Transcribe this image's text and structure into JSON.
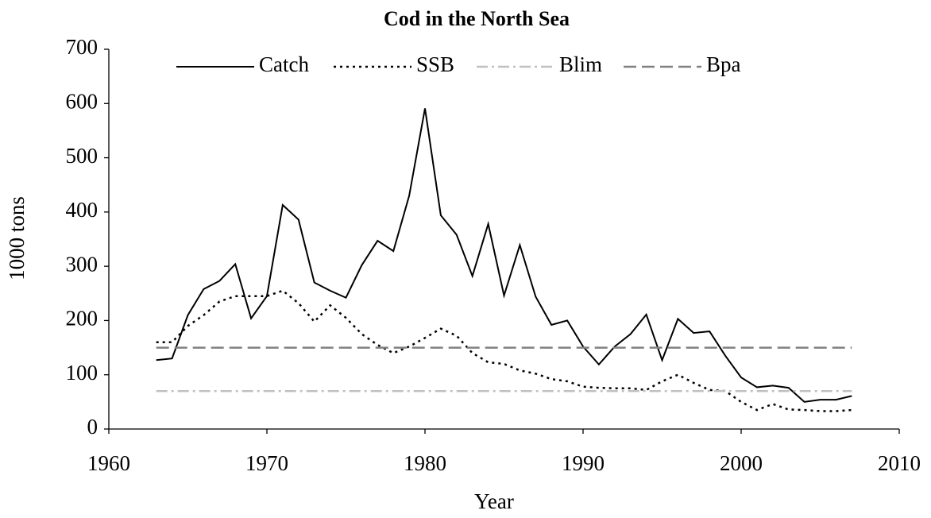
{
  "chart_data": {
    "type": "line",
    "title": "Cod in the North Sea",
    "x_label": "Year",
    "y_label": "1000 tons",
    "x": [
      1963,
      1964,
      1965,
      1966,
      1967,
      1968,
      1969,
      1970,
      1971,
      1972,
      1973,
      1974,
      1975,
      1976,
      1977,
      1978,
      1979,
      1980,
      1981,
      1982,
      1983,
      1984,
      1985,
      1986,
      1987,
      1988,
      1989,
      1990,
      1991,
      1992,
      1993,
      1994,
      1995,
      1996,
      1997,
      1998,
      1999,
      2000,
      2001,
      2002,
      2003,
      2004,
      2005,
      2006,
      2007
    ],
    "series": [
      {
        "name": "Catch",
        "color": "#000000",
        "dash": "solid",
        "values": [
          127,
          130,
          210,
          258,
          273,
          304,
          204,
          245,
          413,
          386,
          270,
          255,
          242,
          302,
          347,
          328,
          430,
          591,
          394,
          358,
          282,
          378,
          246,
          339,
          244,
          192,
          200,
          152,
          119,
          152,
          175,
          211,
          127,
          203,
          177,
          180,
          135,
          95,
          77,
          80,
          76,
          50,
          54,
          54,
          61
        ]
      },
      {
        "name": "SSB",
        "color": "#000000",
        "dash": "dotted",
        "values": [
          160,
          160,
          190,
          210,
          235,
          245,
          245,
          245,
          255,
          232,
          198,
          228,
          205,
          175,
          155,
          140,
          152,
          168,
          185,
          172,
          140,
          123,
          120,
          108,
          102,
          92,
          88,
          78,
          76,
          75,
          75,
          72,
          88,
          100,
          85,
          72,
          70,
          50,
          35,
          46,
          36,
          35,
          33,
          33,
          35
        ]
      },
      {
        "name": "Blim",
        "color": "#c0c0c0",
        "dash": "dashdot",
        "values": [
          70,
          70,
          70,
          70,
          70,
          70,
          70,
          70,
          70,
          70,
          70,
          70,
          70,
          70,
          70,
          70,
          70,
          70,
          70,
          70,
          70,
          70,
          70,
          70,
          70,
          70,
          70,
          70,
          70,
          70,
          70,
          70,
          70,
          70,
          70,
          70,
          70,
          70,
          70,
          70,
          70,
          70,
          70,
          70,
          70
        ]
      },
      {
        "name": "Bpa",
        "color": "#808080",
        "dash": "dashed",
        "values": [
          150,
          150,
          150,
          150,
          150,
          150,
          150,
          150,
          150,
          150,
          150,
          150,
          150,
          150,
          150,
          150,
          150,
          150,
          150,
          150,
          150,
          150,
          150,
          150,
          150,
          150,
          150,
          150,
          150,
          150,
          150,
          150,
          150,
          150,
          150,
          150,
          150,
          150,
          150,
          150,
          150,
          150,
          150,
          150,
          150
        ]
      }
    ],
    "xlim": [
      1960,
      2010
    ],
    "xticks": [
      1960,
      1970,
      1980,
      1990,
      2000,
      2010
    ],
    "ylim": [
      0,
      700
    ],
    "yticks": [
      0,
      100,
      200,
      300,
      400,
      500,
      600,
      700
    ],
    "grid": false,
    "legend": "top"
  }
}
